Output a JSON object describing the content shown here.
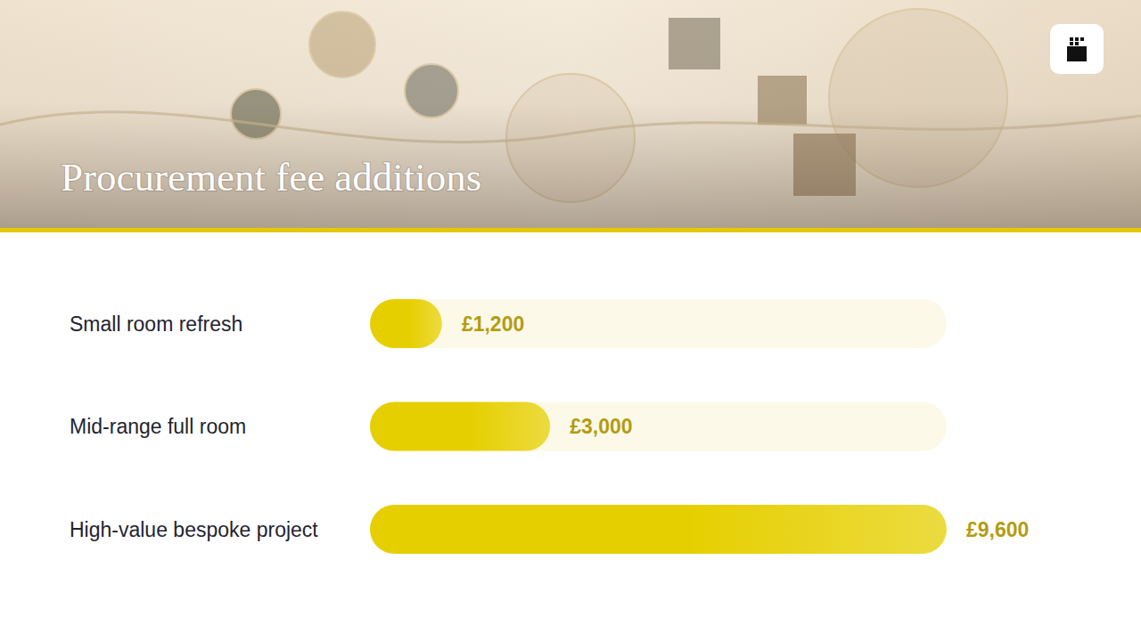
{
  "chart_data": {
    "type": "bar",
    "title": "Procurement fee additions",
    "orientation": "horizontal",
    "categories": [
      "Small room refresh",
      "Mid-range full room",
      "High-value bespoke project"
    ],
    "values": [
      1200,
      3000,
      9600
    ],
    "value_labels": [
      "£1,200",
      "£3,000",
      "£9,600"
    ],
    "data_labels": true,
    "color": "#e6cf00",
    "xlim": [
      0,
      9600
    ],
    "tick_labels": false,
    "grid": false
  }
}
